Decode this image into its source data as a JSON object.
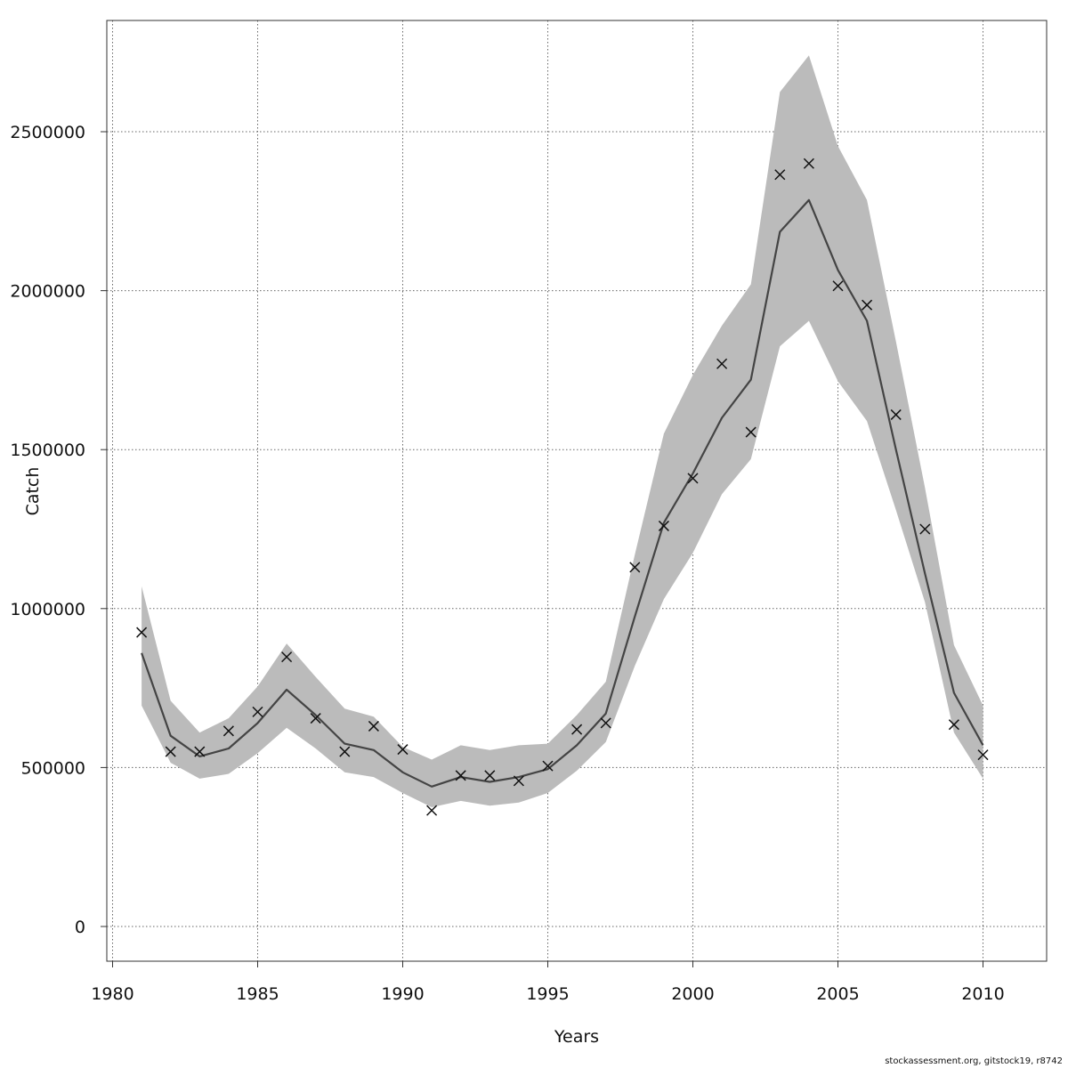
{
  "chart_data": {
    "type": "line",
    "xlabel": "Years",
    "ylabel": "Catch",
    "xlim": [
      1979.9,
      1981.0
    ],
    "ylim": [
      -110000,
      2850000
    ],
    "x_ticks": [
      1980,
      1985,
      1990,
      1995,
      2000,
      2005,
      2010
    ],
    "y_ticks": [
      0,
      500000,
      1000000,
      1500000,
      2000000,
      2500000
    ],
    "grid": true,
    "colors": {
      "band": "#bbbbbb",
      "line": "#444444",
      "points": "#111111",
      "grid": "#666666"
    },
    "series": [
      {
        "kind": "confidence_band",
        "x": [
          1981,
          1982,
          1983,
          1984,
          1985,
          1986,
          1987,
          1988,
          1989,
          1990,
          1991,
          1992,
          1993,
          1994,
          1995,
          1996,
          1997,
          1998,
          1999,
          2000,
          2001,
          2002,
          2003,
          2004,
          2005,
          2006,
          2007,
          2008,
          2009,
          2010
        ],
        "lower": [
          695000,
          515000,
          465000,
          480000,
          545000,
          625000,
          560000,
          485000,
          470000,
          420000,
          375000,
          395000,
          380000,
          390000,
          420000,
          490000,
          580000,
          820000,
          1030000,
          1175000,
          1360000,
          1470000,
          1825000,
          1905000,
          1715000,
          1590000,
          1310000,
          1020000,
          610000,
          465000
        ],
        "upper": [
          1070000,
          710000,
          610000,
          655000,
          755000,
          890000,
          785000,
          685000,
          660000,
          565000,
          525000,
          570000,
          555000,
          570000,
          575000,
          665000,
          770000,
          1170000,
          1550000,
          1735000,
          1890000,
          2020000,
          2625000,
          2740000,
          2455000,
          2285000,
          1840000,
          1380000,
          885000,
          695000
        ]
      },
      {
        "kind": "estimate",
        "x": [
          1981,
          1982,
          1983,
          1984,
          1985,
          1986,
          1987,
          1988,
          1989,
          1990,
          1991,
          1992,
          1993,
          1994,
          1995,
          1996,
          1997,
          1998,
          1999,
          2000,
          2001,
          2002,
          2003,
          2004,
          2005,
          2006,
          2007,
          2008,
          2009,
          2010
        ],
        "values": [
          860000,
          600000,
          535000,
          560000,
          640000,
          745000,
          665000,
          575000,
          555000,
          485000,
          440000,
          470000,
          455000,
          470000,
          495000,
          570000,
          670000,
          975000,
          1270000,
          1425000,
          1600000,
          1720000,
          2185000,
          2285000,
          2065000,
          1905000,
          1500000,
          1110000,
          735000,
          570000
        ]
      },
      {
        "kind": "observed",
        "x": [
          1981,
          1982,
          1983,
          1984,
          1985,
          1986,
          1987,
          1988,
          1989,
          1990,
          1991,
          1992,
          1993,
          1994,
          1995,
          1996,
          1997,
          1998,
          1999,
          2000,
          2001,
          2002,
          2003,
          2004,
          2005,
          2006,
          2007,
          2008,
          2009,
          2010
        ],
        "values": [
          925000,
          550000,
          550000,
          615000,
          675000,
          848000,
          655000,
          550000,
          630000,
          557000,
          365000,
          475000,
          475000,
          458000,
          505000,
          620000,
          640000,
          1130000,
          1260000,
          1410000,
          1770000,
          1555000,
          2365000,
          2400000,
          2015000,
          1955000,
          1610000,
          1250000,
          635000,
          540000
        ]
      }
    ]
  },
  "credit": "stockassessment.org, gitstock19, r8742"
}
